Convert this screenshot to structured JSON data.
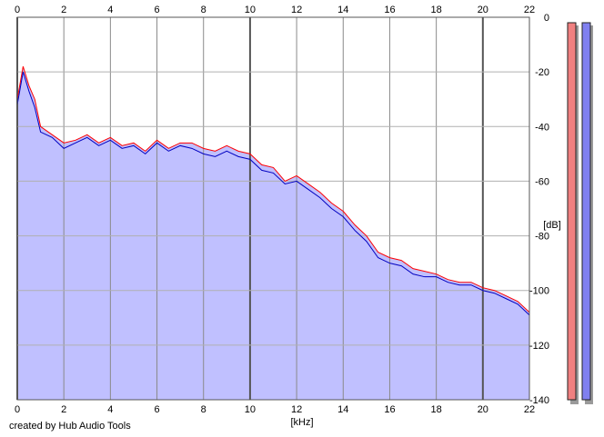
{
  "footer": {
    "credit": "created by Hub Audio Tools"
  },
  "chart_data": {
    "type": "line",
    "xlabel": "[kHz]",
    "ylabel": "[dB]",
    "xlim": [
      0,
      22
    ],
    "ylim": [
      -140,
      0
    ],
    "x_ticks": [
      0,
      2,
      4,
      6,
      8,
      10,
      12,
      14,
      16,
      18,
      20,
      22
    ],
    "y_ticks": [
      0,
      -20,
      -40,
      -60,
      -80,
      -100,
      -120,
      -140
    ],
    "grid": true,
    "fill_color": "#c0c0ff",
    "background": "#ffffff",
    "series": [
      {
        "color": "#ff0000",
        "x": [
          0,
          0.25,
          0.5,
          0.75,
          1,
          1.5,
          2,
          2.5,
          3,
          3.5,
          4,
          4.5,
          5,
          5.5,
          6,
          6.5,
          7,
          7.5,
          8,
          8.5,
          9,
          9.5,
          10,
          10.5,
          11,
          11.5,
          12,
          12.5,
          13,
          13.5,
          14,
          14.5,
          15,
          15.5,
          16,
          16.5,
          17,
          17.5,
          18,
          18.5,
          19,
          19.5,
          20,
          20.5,
          21,
          21.5,
          22
        ],
        "y": [
          -30,
          -18,
          -25,
          -30,
          -40,
          -43,
          -46,
          -45,
          -43,
          -46,
          -44,
          -47,
          -46,
          -49,
          -45,
          -48,
          -46,
          -46,
          -48,
          -49,
          -47,
          -49,
          -50,
          -54,
          -55,
          -60,
          -58,
          -61,
          -64,
          -68,
          -71,
          -76,
          -80,
          -86,
          -88,
          -89,
          -92,
          -93,
          -94,
          -96,
          -97,
          -97,
          -99,
          -100,
          -102,
          -104,
          -108
        ]
      },
      {
        "color": "#0000c0",
        "x": [
          0,
          0.25,
          0.5,
          0.75,
          1,
          1.5,
          2,
          2.5,
          3,
          3.5,
          4,
          4.5,
          5,
          5.5,
          6,
          6.5,
          7,
          7.5,
          8,
          8.5,
          9,
          9.5,
          10,
          10.5,
          11,
          11.5,
          12,
          12.5,
          13,
          13.5,
          14,
          14.5,
          15,
          15.5,
          16,
          16.5,
          17,
          17.5,
          18,
          18.5,
          19,
          19.5,
          20,
          20.5,
          21,
          21.5,
          22
        ],
        "y": [
          -32,
          -20,
          -27,
          -33,
          -42,
          -44,
          -48,
          -46,
          -44,
          -47,
          -45,
          -48,
          -47,
          -50,
          -46,
          -49,
          -47,
          -48,
          -50,
          -51,
          -49,
          -51,
          -52,
          -56,
          -57,
          -61,
          -60,
          -63,
          -66,
          -70,
          -73,
          -78,
          -82,
          -88,
          -90,
          -91,
          -94,
          -95,
          -95,
          -97,
          -98,
          -98,
          -100,
          -101,
          -103,
          -105,
          -109
        ]
      }
    ],
    "level_meters": [
      {
        "color": "#f08080",
        "level": 1.0
      },
      {
        "color": "#8080f0",
        "level": 1.0
      }
    ]
  }
}
